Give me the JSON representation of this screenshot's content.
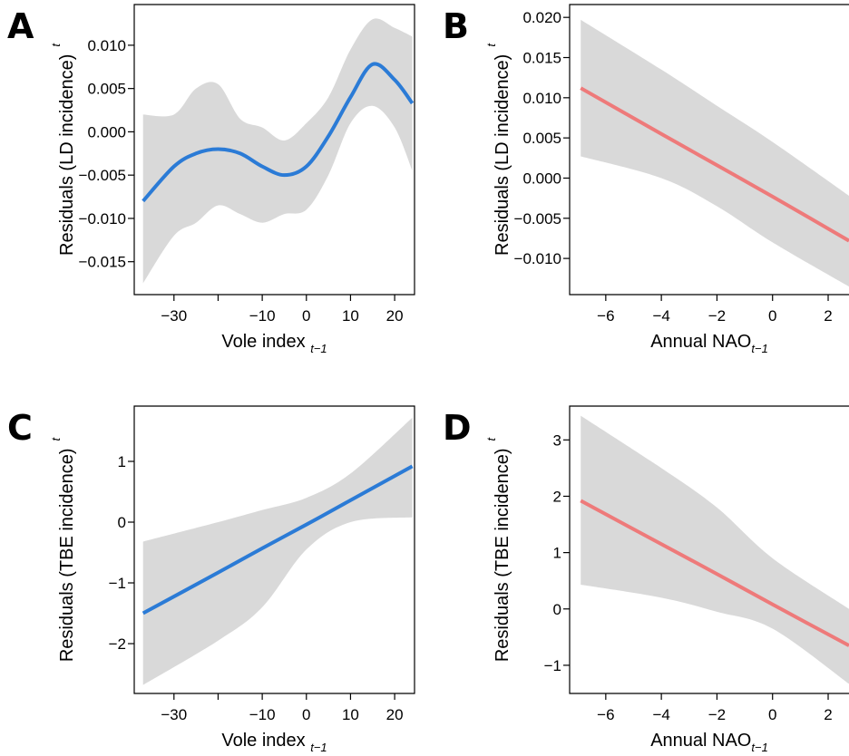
{
  "chart_data": [
    {
      "type": "line",
      "panel": "A",
      "ylabel": "Residuals (LD incidence)",
      "ylabel_sub": "t",
      "xlabel": "Vole index ",
      "xlabel_sub": "t−1",
      "x": [
        -37,
        -30,
        -25,
        -20,
        -15,
        -10,
        -5,
        0,
        5,
        10,
        15,
        20,
        24
      ],
      "series": [
        {
          "color": "#2b7bd6",
          "values": [
            -0.008,
            -0.004,
            -0.0025,
            -0.002,
            -0.0025,
            -0.004,
            -0.005,
            -0.004,
            -0.0005,
            0.004,
            0.0078,
            0.006,
            0.0033
          ]
        }
      ],
      "band": {
        "color": "#d9d9d9",
        "upper": [
          0.002,
          0.002,
          0.005,
          0.0055,
          0.0015,
          0.0005,
          -0.001,
          0.001,
          0.004,
          0.0095,
          0.013,
          0.012,
          0.011
        ],
        "lower": [
          -0.0175,
          -0.012,
          -0.0105,
          -0.0085,
          -0.0095,
          -0.0105,
          -0.0095,
          -0.009,
          -0.005,
          0.001,
          0.003,
          0.0005,
          -0.0045
        ]
      },
      "xlim": [
        -39,
        24.5
      ],
      "ylim": [
        -0.0188,
        0.0147
      ],
      "xticks": [
        {
          "value": -30,
          "label": "−30"
        },
        {
          "value": -20,
          "label": null
        },
        {
          "value": -10,
          "label": "−10"
        },
        0,
        10,
        20
      ],
      "yticks": [
        {
          "value": -0.015,
          "label": "−0.015"
        },
        {
          "value": -0.01,
          "label": "−0.010"
        },
        {
          "value": -0.005,
          "label": "−0.005"
        },
        {
          "value": 0,
          "label": "0.000"
        },
        {
          "value": 0.005,
          "label": "0.005"
        },
        {
          "value": 0.01,
          "label": "0.010"
        }
      ]
    },
    {
      "type": "line",
      "panel": "B",
      "ylabel": "Residuals (LD incidence)",
      "ylabel_sub": "t",
      "xlabel": "Annual NAO",
      "xlabel_sub": "t−1",
      "x": [
        -6.9,
        -4,
        -2,
        0,
        2.75
      ],
      "series": [
        {
          "color": "#ee7a7a",
          "values": [
            0.0112,
            0.0055,
            0.0016,
            -0.0023,
            -0.0078
          ]
        }
      ],
      "band": {
        "color": "#d9d9d9",
        "upper": [
          0.0197,
          0.0135,
          0.009,
          0.0045,
          -0.0022
        ],
        "lower": [
          0.0027,
          0.0,
          -0.0035,
          -0.008,
          -0.0135
        ]
      },
      "xlim": [
        -7.3,
        2.75
      ],
      "ylim": [
        -0.0145,
        0.0216
      ],
      "xticks": [
        {
          "value": -6,
          "label": "−6"
        },
        {
          "value": -4,
          "label": "−4"
        },
        {
          "value": -2,
          "label": "−2"
        },
        0,
        2
      ],
      "yticks": [
        {
          "value": -0.01,
          "label": "−0.010"
        },
        {
          "value": -0.005,
          "label": "−0.005"
        },
        {
          "value": 0,
          "label": "0.000"
        },
        {
          "value": 0.005,
          "label": "0.005"
        },
        {
          "value": 0.01,
          "label": "0.010"
        },
        {
          "value": 0.015,
          "label": "0.015"
        },
        {
          "value": 0.02,
          "label": "0.020"
        }
      ]
    },
    {
      "type": "line",
      "panel": "C",
      "ylabel": "Residuals (TBE incidence)",
      "ylabel_sub": "t",
      "xlabel": "Vole index ",
      "xlabel_sub": "t−1",
      "x": [
        -37,
        -20,
        -10,
        0,
        10,
        24
      ],
      "series": [
        {
          "color": "#2b7bd6",
          "values": [
            -1.5,
            -0.83,
            -0.43,
            -0.04,
            0.36,
            0.92
          ]
        }
      ],
      "band": {
        "color": "#d9d9d9",
        "upper": [
          -0.32,
          0.0,
          0.2,
          0.4,
          0.8,
          1.72
        ],
        "lower": [
          -2.68,
          -1.95,
          -1.4,
          -0.45,
          0.0,
          0.08
        ]
      },
      "xlim": [
        -39,
        24.5
      ],
      "ylim": [
        -2.82,
        1.91
      ],
      "xticks": [
        {
          "value": -30,
          "label": "−30"
        },
        {
          "value": -20,
          "label": null
        },
        {
          "value": -10,
          "label": "−10"
        },
        0,
        10,
        20
      ],
      "yticks": [
        {
          "value": -2,
          "label": "−2"
        },
        {
          "value": -1,
          "label": "−1"
        },
        0,
        1
      ]
    },
    {
      "type": "line",
      "panel": "D",
      "ylabel": "Residuals (TBE incidence)",
      "ylabel_sub": "t",
      "xlabel": "Annual NAO",
      "xlabel_sub": "t−1",
      "x": [
        -6.9,
        -4,
        -2,
        0,
        2.75
      ],
      "series": [
        {
          "color": "#ee7a7a",
          "values": [
            1.92,
            1.15,
            0.62,
            0.08,
            -0.65
          ]
        }
      ],
      "band": {
        "color": "#d9d9d9",
        "upper": [
          3.43,
          2.5,
          1.8,
          0.9,
          0.0
        ],
        "lower": [
          0.43,
          0.2,
          -0.05,
          -0.35,
          -1.33
        ]
      },
      "xlim": [
        -7.3,
        2.75
      ],
      "ylim": [
        -1.5,
        3.6
      ],
      "xticks": [
        {
          "value": -6,
          "label": "−6"
        },
        {
          "value": -4,
          "label": "−4"
        },
        {
          "value": -2,
          "label": "−2"
        },
        0,
        2
      ],
      "yticks": [
        {
          "value": -1,
          "label": "−1"
        },
        0,
        1,
        2,
        3
      ]
    }
  ]
}
